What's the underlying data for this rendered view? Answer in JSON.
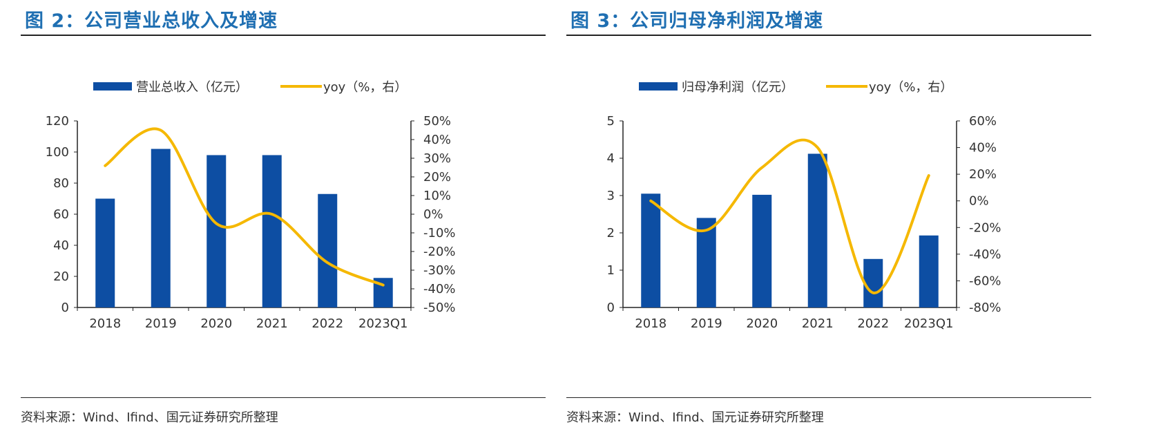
{
  "colors": {
    "title": "#1f6fb2",
    "bar": "#0d4ea3",
    "line": "#f5b800",
    "axis": "#222222"
  },
  "left": {
    "title": "图 2：公司营业总收入及增速",
    "source": "资料来源：Wind、Ifind、国元证券研究所整理",
    "legend_bar": "营业总收入（亿元）",
    "legend_line": "yoy（%，右）"
  },
  "right": {
    "title": "图 3：公司归母净利润及增速",
    "source": "资料来源：Wind、Ifind、国元证券研究所整理",
    "legend_bar": "归母净利润（亿元）",
    "legend_line": "yoy（%，右）"
  },
  "chart_data": [
    {
      "type": "bar",
      "title": "图 2：公司营业总收入及增速",
      "categories": [
        "2018",
        "2019",
        "2020",
        "2021",
        "2022",
        "2023Q1"
      ],
      "series": [
        {
          "name": "营业总收入（亿元）",
          "type": "bar",
          "axis": "left",
          "values": [
            70,
            102,
            98,
            98,
            73,
            19
          ]
        },
        {
          "name": "yoy（%，右）",
          "type": "line",
          "axis": "right",
          "values": [
            26,
            45,
            -5,
            0,
            -26,
            -38
          ]
        }
      ],
      "ylim": [
        0,
        120
      ],
      "yticks": [
        "0",
        "20",
        "40",
        "60",
        "80",
        "100",
        "120"
      ],
      "y2lim": [
        -50,
        50
      ],
      "y2ticks": [
        "-50%",
        "-40%",
        "-30%",
        "-20%",
        "-10%",
        "0%",
        "10%",
        "20%",
        "30%",
        "40%",
        "50%"
      ],
      "legend": "top",
      "grid": false
    },
    {
      "type": "bar",
      "title": "图 3：公司归母净利润及增速",
      "categories": [
        "2018",
        "2019",
        "2020",
        "2021",
        "2022",
        "2023Q1"
      ],
      "series": [
        {
          "name": "归母净利润（亿元）",
          "type": "bar",
          "axis": "left",
          "values": [
            3.05,
            2.4,
            3.02,
            4.12,
            1.3,
            1.93
          ]
        },
        {
          "name": "yoy（%，右）",
          "type": "line",
          "axis": "right",
          "values": [
            0,
            -22,
            25,
            40,
            -69,
            19
          ]
        }
      ],
      "ylim": [
        0,
        5
      ],
      "yticks": [
        "0",
        "1",
        "2",
        "3",
        "4",
        "5"
      ],
      "y2lim": [
        -80,
        60
      ],
      "y2ticks": [
        "-80%",
        "-60%",
        "-40%",
        "-20%",
        "0%",
        "20%",
        "40%",
        "60%"
      ],
      "legend": "top",
      "grid": false
    }
  ]
}
